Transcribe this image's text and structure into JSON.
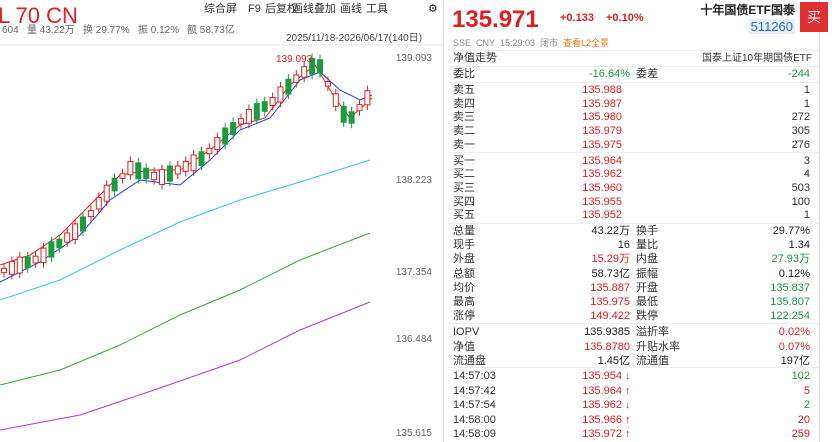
{
  "chart_panel": {
    "ticker": "L 70 CN",
    "quote_strip": [
      "604",
      "量 43.22万",
      "换 29.77%",
      "振 0.12%",
      "额 58.73亿"
    ],
    "tools": [
      "综合屏",
      "F9",
      "后复权",
      "画线叠加",
      "画线",
      "工具"
    ],
    "range": "2025/11/18-2026/06/17(140日)",
    "price_axis": [
      "139.093",
      "138.223",
      "137.354",
      "136.484",
      "135.615"
    ],
    "high_label": "139.093"
  },
  "header": {
    "price": "135.971",
    "change": "+0.133",
    "change_pct": "+0.10%",
    "name": "十年国债ETF国泰",
    "code": "511260",
    "buy": "买",
    "market": "SSE",
    "currency": "CNY",
    "time": "15:29:03",
    "status": "闭市",
    "l2_link": "查看L2全景"
  },
  "nav_row": {
    "left": "净值走势",
    "right": "国泰上证10年期国债ETF"
  },
  "commission": {
    "label": "委比",
    "value": "-16.64%",
    "label2": "委差",
    "value2": "-244"
  },
  "order_book": [
    {
      "label": "卖五",
      "price": "135.988",
      "volume": "1"
    },
    {
      "label": "卖四",
      "price": "135.987",
      "volume": "1"
    },
    {
      "label": "卖三",
      "price": "135.980",
      "volume": "272"
    },
    {
      "label": "卖二",
      "price": "135.979",
      "volume": "305"
    },
    {
      "label": "卖一",
      "price": "135.975",
      "volume": "276"
    },
    {
      "label": "买一",
      "price": "135.964",
      "volume": "3"
    },
    {
      "label": "买二",
      "price": "135.962",
      "volume": "4"
    },
    {
      "label": "买三",
      "price": "135.960",
      "volume": "503"
    },
    {
      "label": "买四",
      "price": "135.955",
      "volume": "100"
    },
    {
      "label": "买五",
      "price": "135.952",
      "volume": "1"
    }
  ],
  "stats": [
    {
      "label": "总量",
      "value": "43.22万",
      "color": "#222222",
      "label2": "换手",
      "value2": "29.77%",
      "color2": "#222222"
    },
    {
      "label": "现手",
      "value": "16",
      "color": "#222222",
      "label2": "量比",
      "value2": "1.34",
      "color2": "#222222"
    },
    {
      "label": "外盘",
      "value": "15.29万",
      "color": "#e02020",
      "label2": "内盘",
      "value2": "27.93万",
      "color2": "#1a9c3e"
    },
    {
      "label": "总额",
      "value": "58.73亿",
      "color": "#222222",
      "label2": "振幅",
      "value2": "0.12%",
      "color2": "#222222"
    },
    {
      "label": "均价",
      "value": "135.887",
      "color": "#e02020",
      "label2": "开盘",
      "value2": "135.837",
      "color2": "#1a9c3e"
    },
    {
      "label": "最高",
      "value": "135.975",
      "color": "#e02020",
      "label2": "最低",
      "value2": "135.807",
      "color2": "#1a9c3e"
    },
    {
      "label": "涨停",
      "value": "149.422",
      "color": "#e02020",
      "label2": "跌停",
      "value2": "122.254",
      "color2": "#1a9c3e"
    },
    {
      "label": "IOPV",
      "value": "135.9385",
      "color": "#222222",
      "label2": "溢折率",
      "value2": "0.02%",
      "color2": "#e02020"
    },
    {
      "label": "净值",
      "value": "135.8780",
      "color": "#e02020",
      "label2": "升贴水率",
      "value2": "0.07%",
      "color2": "#e02020"
    },
    {
      "label": "流通盘",
      "value": "1.45亿",
      "color": "#222222",
      "label2": "流通值",
      "value2": "197亿",
      "color2": "#222222"
    }
  ],
  "trades": [
    {
      "time": "14:57:03",
      "price": "135.954",
      "dir": "↓",
      "color": "#1a9c3e",
      "volume": "102"
    },
    {
      "time": "14:57:42",
      "price": "135.964",
      "dir": "↑",
      "color": "#e02020",
      "volume": "5"
    },
    {
      "time": "14:57:54",
      "price": "135.962",
      "dir": "↓",
      "color": "#1a9c3e",
      "volume": "2"
    },
    {
      "time": "14:58:00",
      "price": "135.966",
      "dir": "↑",
      "color": "#e02020",
      "volume": "20"
    },
    {
      "time": "14:58:09",
      "price": "135.972",
      "dir": "↑",
      "color": "#e02020",
      "volume": "259"
    }
  ]
}
